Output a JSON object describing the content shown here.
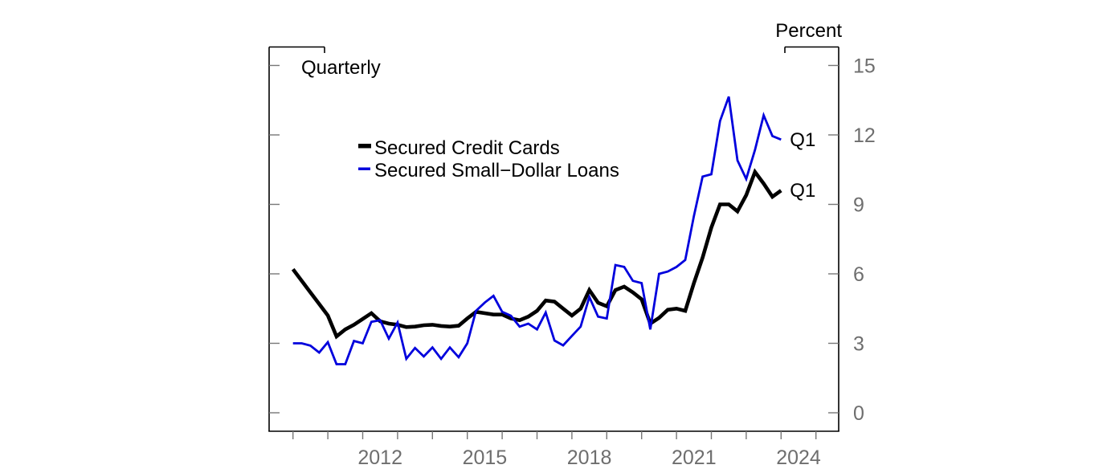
{
  "header": {
    "quarterly_label": "Quarterly",
    "percent_label": "Percent"
  },
  "legend": {
    "items": [
      {
        "label": "Secured Credit Cards",
        "color": "#000000"
      },
      {
        "label": "Secured Small−Dollar Loans",
        "color": "#0000dd"
      }
    ]
  },
  "annotations": {
    "series_end_labels": [
      "Q1",
      "Q1"
    ]
  },
  "chart_data": {
    "type": "line",
    "title": "",
    "frequency_label": "Quarterly",
    "unit_label": "Percent",
    "start_period": "2010Q1",
    "end_period": "2024Q1",
    "ylim": [
      0,
      15
    ],
    "y_ticks": [
      0,
      3,
      6,
      9,
      12,
      15
    ],
    "x_axis": {
      "start_year": 2010,
      "tick_years": [
        2010,
        2011,
        2012,
        2013,
        2014,
        2015,
        2016,
        2017,
        2018,
        2019,
        2020,
        2021,
        2022,
        2023,
        2024,
        2025
      ],
      "label_years": [
        2012,
        2015,
        2018,
        2021,
        2024
      ]
    },
    "legend_position": "upper-center-left",
    "grid": false,
    "series": [
      {
        "name": "Secured Credit Cards",
        "color": "#000000",
        "end_label": "Q1",
        "values": [
          6.2,
          5.7,
          5.2,
          4.7,
          4.2,
          3.3,
          3.6,
          3.8,
          4.05,
          4.3,
          3.95,
          3.85,
          3.8,
          3.7,
          3.72,
          3.78,
          3.8,
          3.75,
          3.72,
          3.76,
          4.07,
          4.36,
          4.3,
          4.24,
          4.24,
          4.07,
          4.0,
          4.15,
          4.4,
          4.85,
          4.8,
          4.5,
          4.2,
          4.5,
          5.3,
          4.75,
          4.6,
          5.3,
          5.45,
          5.2,
          4.9,
          3.85,
          4.1,
          4.45,
          4.5,
          4.4,
          5.6,
          6.7,
          8.0,
          9.0,
          9.0,
          8.7,
          9.4,
          10.4,
          9.9,
          9.33,
          9.6
        ]
      },
      {
        "name": "Secured Small−Dollar Loans",
        "color": "#0000dd",
        "end_label": "Q1",
        "values": [
          3.0,
          3.0,
          2.9,
          2.6,
          3.05,
          2.1,
          2.1,
          3.1,
          3.0,
          3.93,
          4.0,
          3.2,
          3.9,
          2.33,
          2.8,
          2.43,
          2.82,
          2.33,
          2.82,
          2.4,
          3.0,
          4.4,
          4.76,
          5.05,
          4.36,
          4.19,
          3.72,
          3.85,
          3.6,
          4.33,
          3.12,
          2.91,
          3.32,
          3.72,
          5.0,
          4.15,
          4.07,
          6.38,
          6.3,
          5.7,
          5.6,
          3.6,
          6.0,
          6.1,
          6.3,
          6.6,
          8.5,
          10.2,
          10.3,
          12.6,
          13.65,
          10.9,
          10.1,
          11.35,
          12.85,
          11.95,
          11.8
        ]
      }
    ]
  }
}
